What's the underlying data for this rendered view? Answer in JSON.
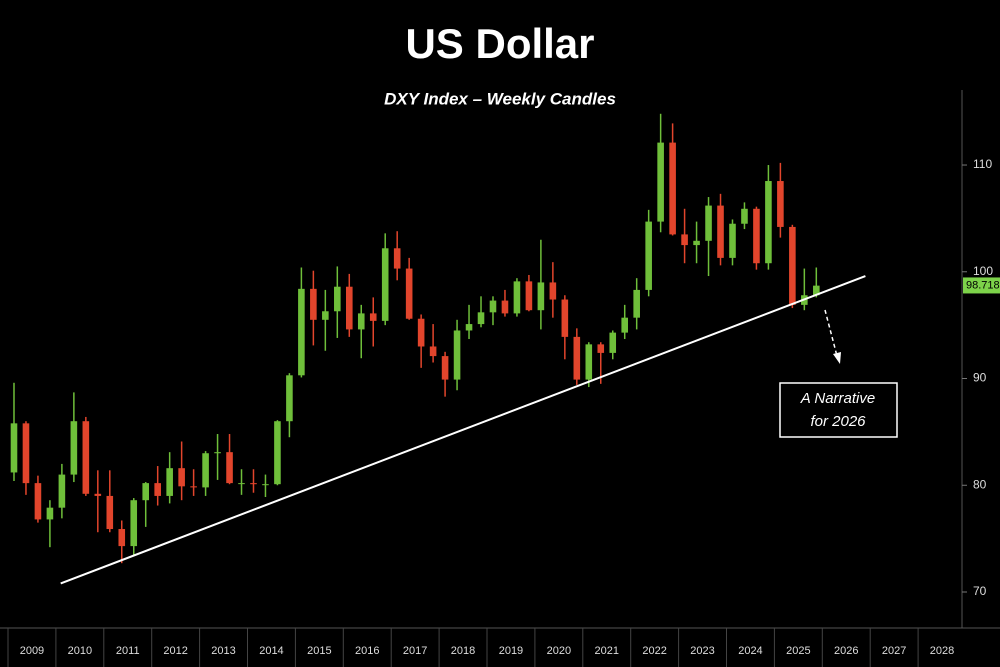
{
  "chart_data": {
    "type": "candlestick",
    "title": "US Dollar",
    "subtitle": "DXY Index – Weekly Candles",
    "x": [
      2009,
      2009.25,
      2009.5,
      2009.75,
      2010,
      2010.25,
      2010.5,
      2010.75,
      2011,
      2011.25,
      2011.5,
      2011.75,
      2012,
      2012.25,
      2012.5,
      2012.75,
      2013,
      2013.25,
      2013.5,
      2013.75,
      2014,
      2014.25,
      2014.5,
      2014.75,
      2015,
      2015.25,
      2015.5,
      2015.75,
      2016,
      2016.25,
      2016.5,
      2016.75,
      2017,
      2017.25,
      2017.5,
      2017.75,
      2018,
      2018.25,
      2018.5,
      2018.75,
      2019,
      2019.25,
      2019.5,
      2019.75,
      2020,
      2020.25,
      2020.5,
      2020.75,
      2021,
      2021.25,
      2021.5,
      2021.75,
      2022,
      2022.25,
      2022.5,
      2022.75,
      2023,
      2023.25,
      2023.5,
      2023.75,
      2024,
      2024.25,
      2024.5,
      2024.75,
      2025,
      2025.25,
      2025.5,
      2025.75
    ],
    "open": [
      81.2,
      85.8,
      80.2,
      76.8,
      77.9,
      81.0,
      86.0,
      79.2,
      79.0,
      75.9,
      74.3,
      78.6,
      80.2,
      79.0,
      81.6,
      79.9,
      79.8,
      83.0,
      83.1,
      80.2,
      80.2,
      80.1,
      80.1,
      86.0,
      90.3,
      98.4,
      95.5,
      96.3,
      98.6,
      94.6,
      96.1,
      95.4,
      102.2,
      100.3,
      95.6,
      93.0,
      92.1,
      89.9,
      94.5,
      95.1,
      96.2,
      97.3,
      96.1,
      99.1,
      96.4,
      99.0,
      97.4,
      93.9,
      89.9,
      93.2,
      92.4,
      94.3,
      95.7,
      98.3,
      104.7,
      112.1,
      103.5,
      102.5,
      102.9,
      106.2,
      101.3,
      104.5,
      105.9,
      100.8,
      108.5,
      104.2,
      96.9,
      97.8
    ],
    "high": [
      89.6,
      86.0,
      80.9,
      78.6,
      82.0,
      88.7,
      86.4,
      81.4,
      81.4,
      76.7,
      78.8,
      80.3,
      81.8,
      83.1,
      84.1,
      81.5,
      83.2,
      84.8,
      84.8,
      81.5,
      81.5,
      81.0,
      86.1,
      90.5,
      100.4,
      100.1,
      98.3,
      100.5,
      99.8,
      96.9,
      97.6,
      103.6,
      103.8,
      101.3,
      96.0,
      95.1,
      92.5,
      95.5,
      96.9,
      97.7,
      97.7,
      98.3,
      99.4,
      99.7,
      103.0,
      100.9,
      97.8,
      94.7,
      93.4,
      93.4,
      94.5,
      96.9,
      99.4,
      105.8,
      114.8,
      113.9,
      105.9,
      104.7,
      107.0,
      107.3,
      104.9,
      106.5,
      106.1,
      110.0,
      110.2,
      104.4,
      100.3,
      100.4
    ],
    "low": [
      80.4,
      79.1,
      76.5,
      74.2,
      76.9,
      80.3,
      79.0,
      75.6,
      75.6,
      72.7,
      73.4,
      76.1,
      78.1,
      78.3,
      78.6,
      79.0,
      79.0,
      80.5,
      80.1,
      79.1,
      79.3,
      78.9,
      80.0,
      84.5,
      90.1,
      93.1,
      92.6,
      93.8,
      93.9,
      91.9,
      93.0,
      95.0,
      99.2,
      95.5,
      91.0,
      91.5,
      88.3,
      88.9,
      93.7,
      94.8,
      95.0,
      95.8,
      95.8,
      96.3,
      94.6,
      95.7,
      91.8,
      89.4,
      89.2,
      89.5,
      91.8,
      93.7,
      94.6,
      97.7,
      103.7,
      103.4,
      100.8,
      100.8,
      99.6,
      100.6,
      100.6,
      104.0,
      100.2,
      100.2,
      103.2,
      96.6,
      96.4,
      97.6
    ],
    "close": [
      85.8,
      80.2,
      76.8,
      77.9,
      81.0,
      86.0,
      79.2,
      79.0,
      75.9,
      74.3,
      78.6,
      80.2,
      79.0,
      81.6,
      79.9,
      79.8,
      83.0,
      83.1,
      80.2,
      80.2,
      80.1,
      80.1,
      86.0,
      90.3,
      98.4,
      95.5,
      96.3,
      98.6,
      94.6,
      96.1,
      95.4,
      102.2,
      100.3,
      95.6,
      93.0,
      92.1,
      89.9,
      94.5,
      95.1,
      96.2,
      97.3,
      96.1,
      99.1,
      96.4,
      99.0,
      97.4,
      93.9,
      89.9,
      93.2,
      92.4,
      94.3,
      95.7,
      98.3,
      104.7,
      112.1,
      103.5,
      102.5,
      102.9,
      106.2,
      101.3,
      104.5,
      105.9,
      100.8,
      108.5,
      104.2,
      96.9,
      97.8,
      98.7
    ],
    "up_color": "#6fbf3a",
    "down_color": "#e2452c",
    "xlim": [
      2009,
      2029
    ],
    "xticks": [
      2009,
      2010,
      2011,
      2012,
      2013,
      2014,
      2015,
      2016,
      2017,
      2018,
      2019,
      2020,
      2021,
      2022,
      2023,
      2024,
      2025,
      2026,
      2027,
      2028
    ],
    "ylim": [
      66,
      117
    ],
    "yticks": [
      70,
      80,
      90,
      100,
      110
    ],
    "trendline": {
      "x": [
        2010.1,
        2026.9
      ],
      "y": [
        70.8,
        99.6
      ],
      "color": "#ffffff"
    },
    "last_value": 98.718,
    "annotation": [
      "A Narrative",
      "for 2026"
    ]
  }
}
